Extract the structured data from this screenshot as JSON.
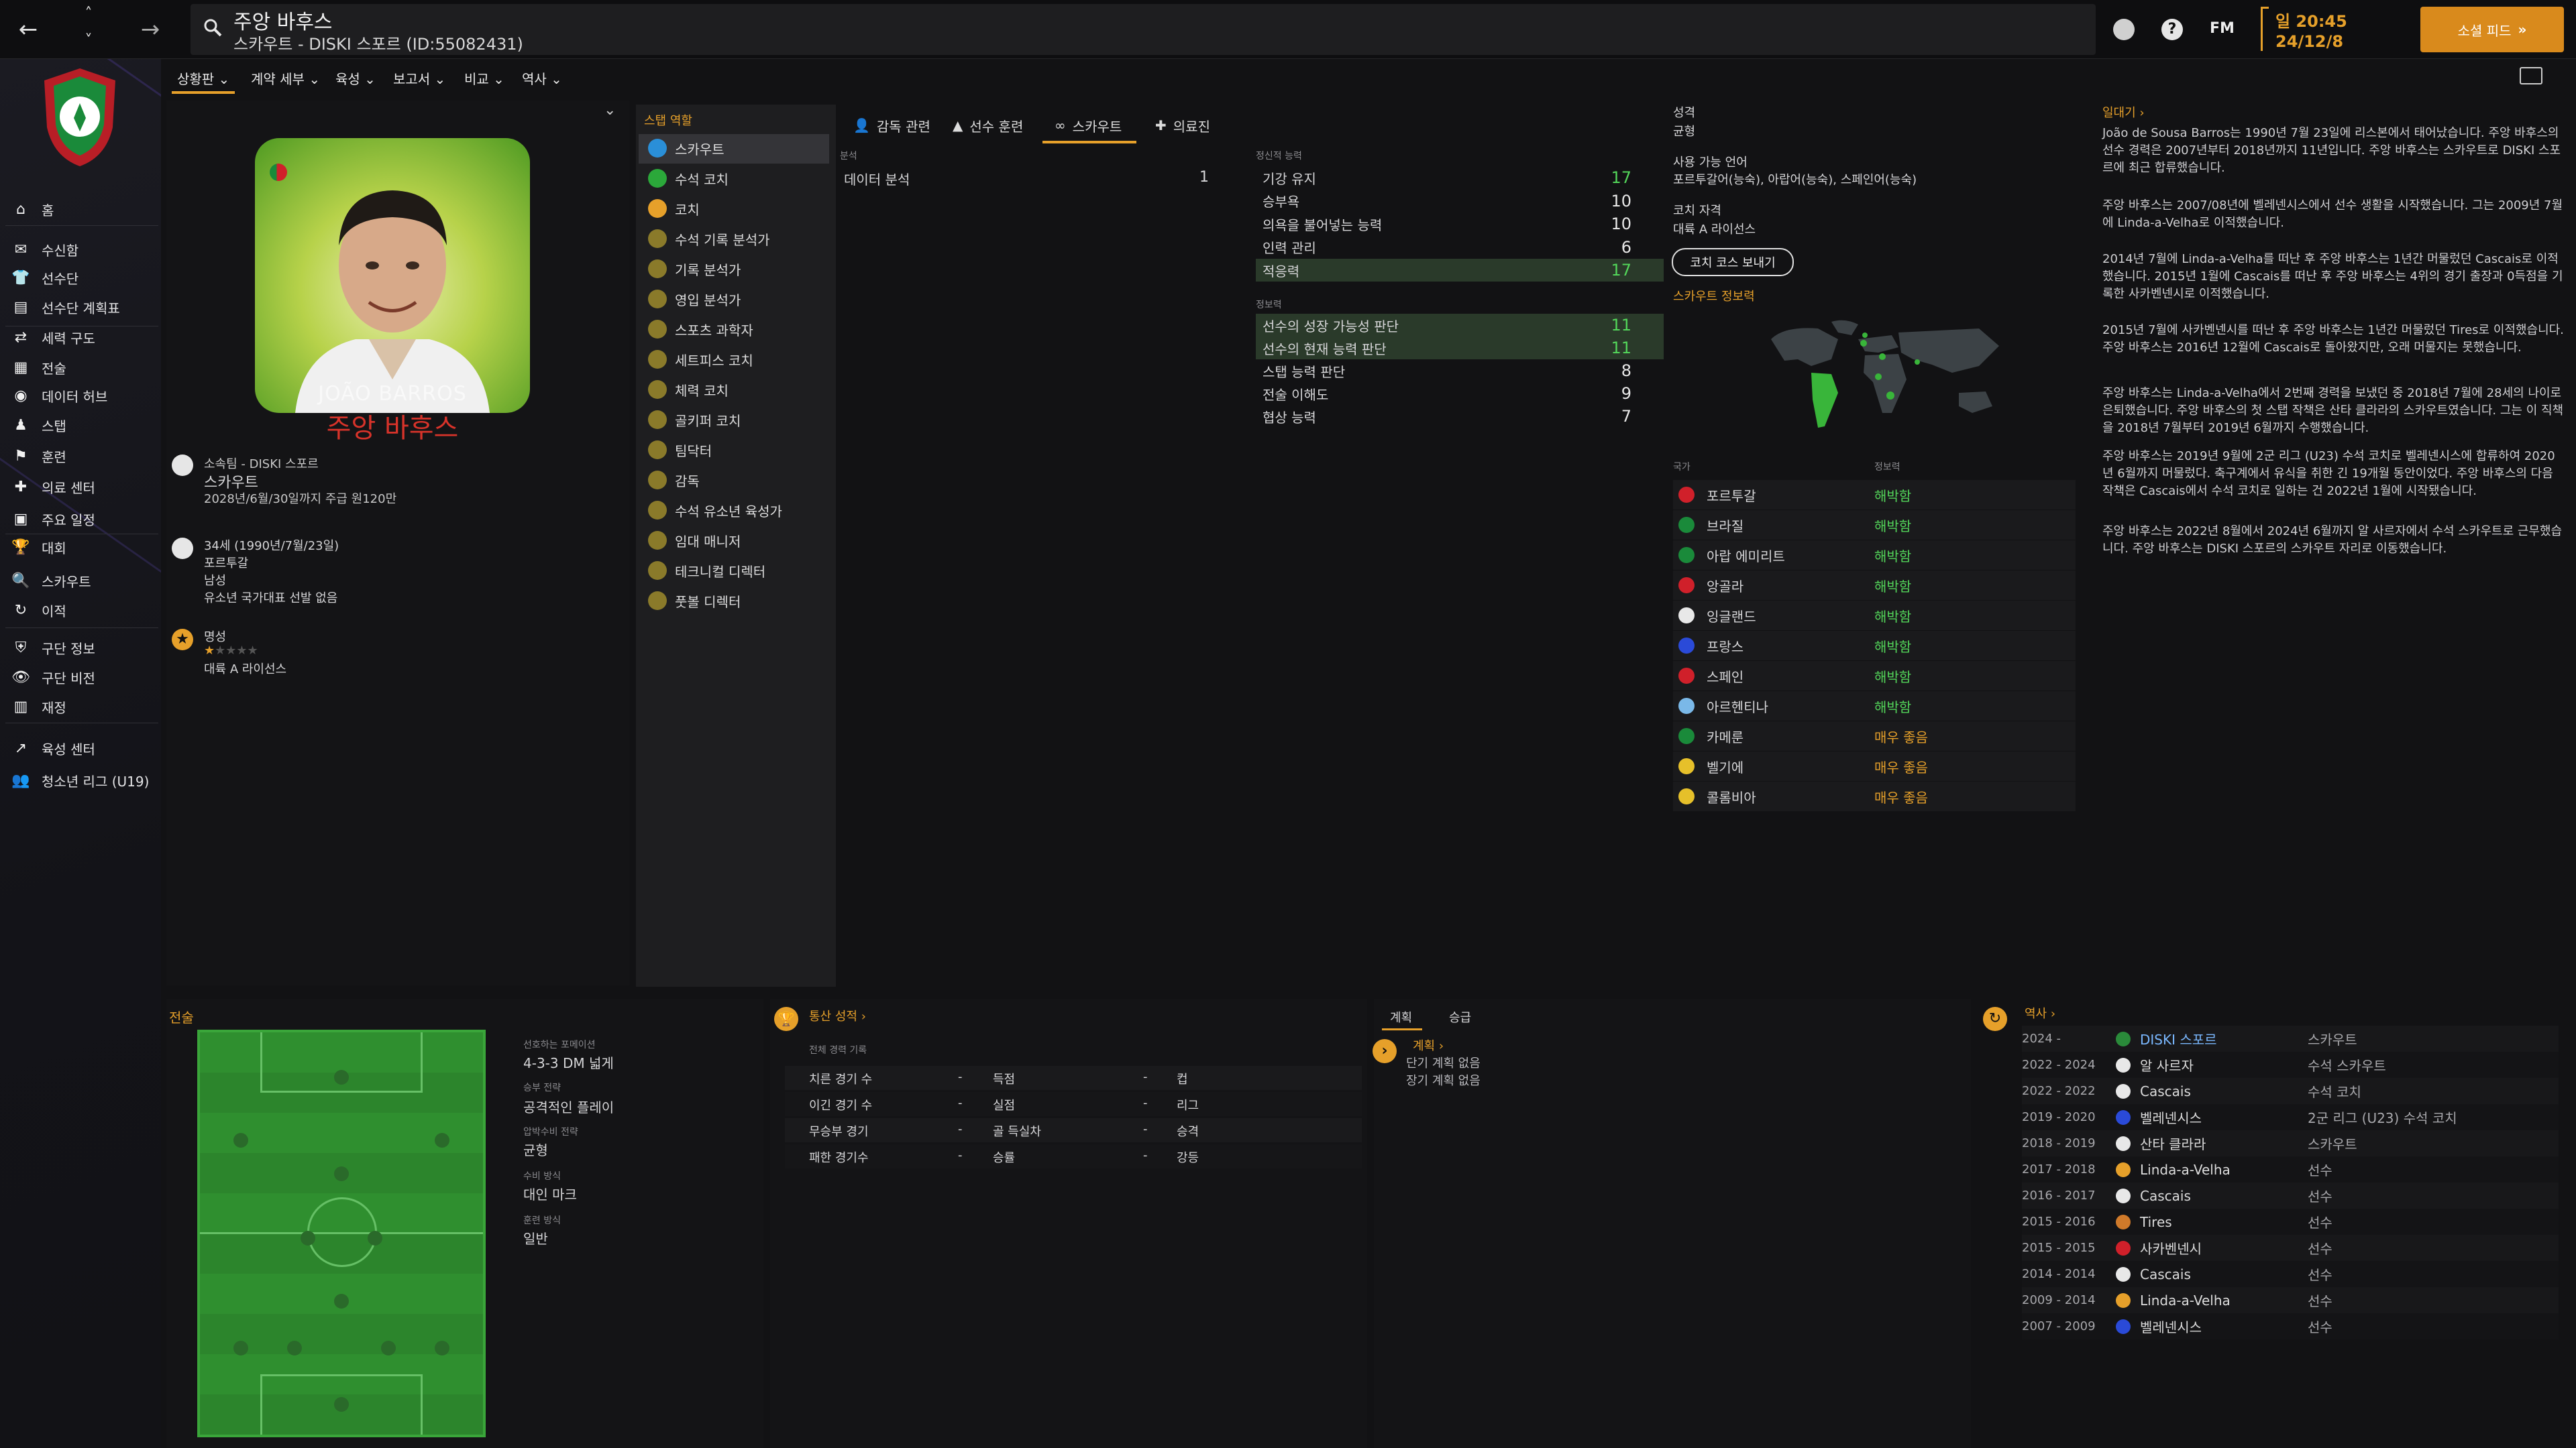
{
  "header": {
    "title": "주앙 바후스",
    "subtitle": "스카우트 - DISKI 스포르 (ID:55082431)",
    "day": "일 20:45",
    "date": "24/12/8",
    "social_feed": "소셜 피드",
    "fm": "FM"
  },
  "subnav": [
    "상황판",
    "계약 세부",
    "육성",
    "보고서",
    "비교",
    "역사"
  ],
  "sidebar": [
    "홈",
    "수신함",
    "선수단",
    "선수단 계획표",
    "세력 구도",
    "전술",
    "데이터 허브",
    "스탭",
    "훈련",
    "의료 센터",
    "주요 일정",
    "대회",
    "스카우트",
    "이적",
    "구단 정보",
    "구단 비전",
    "재정",
    "육성 센터",
    "청소년 리그 (U19)"
  ],
  "profile": {
    "card_name": "JOÃO BARROS",
    "name": "주앙 바후스",
    "club_label": "소속팀 - DISKI 스포르",
    "role": "스카우트",
    "contract": "2028년/6월/30일까지 주급 원120만",
    "age": "34세 (1990년/7월/23일)",
    "nation": "포르투갈",
    "gender": "남성",
    "intl": "유소년 국가대표 선발 없음",
    "rep_label": "명성",
    "license": "대륙 A 라이선스"
  },
  "staff_roles": {
    "title": "스탭 역할",
    "items": [
      "스카우트",
      "수석 코치",
      "코치",
      "수석 기록 분석가",
      "기록 분석가",
      "영입 분석가",
      "스포츠 과학자",
      "세트피스 코치",
      "체력 코치",
      "골키퍼 코치",
      "팀닥터",
      "감독",
      "수석 유소년 육성가",
      "임대 매니저",
      "테크니컬 디렉터",
      "풋볼 디렉터"
    ]
  },
  "tabs": [
    "감독 관련",
    "선수 훈련",
    "스카우트",
    "의료진"
  ],
  "analysis": {
    "section": "분석",
    "label": "데이터 분석",
    "value": "1"
  },
  "mental": {
    "section": "정신적 능력",
    "rows": [
      {
        "n": "기강 유지",
        "v": "17"
      },
      {
        "n": "승부욕",
        "v": "10"
      },
      {
        "n": "의욕을 불어넣는 능력",
        "v": "10"
      },
      {
        "n": "인력 관리",
        "v": "6"
      },
      {
        "n": "적응력",
        "v": "17"
      }
    ]
  },
  "knowledge": {
    "section": "정보력",
    "rows": [
      {
        "n": "선수의 성장 가능성 판단",
        "v": "11"
      },
      {
        "n": "선수의 현재 능력 판단",
        "v": "11"
      },
      {
        "n": "스탭 능력 판단",
        "v": "8"
      },
      {
        "n": "전술 이해도",
        "v": "9"
      },
      {
        "n": "협상 능력",
        "v": "7"
      }
    ]
  },
  "personal": {
    "personality_label": "성격",
    "personality": "균형",
    "lang_label": "사용 가능 언어",
    "langs": "포르투갈어(능숙), 아랍어(능숙), 스페인어(능숙)",
    "coach_label": "코치 자격",
    "coach": "대륙 A 라이선스",
    "course_btn": "코치 코스 보내기",
    "scout_label": "스카우트 정보력",
    "col_nation": "국가",
    "col_level": "정보력"
  },
  "nations": [
    {
      "n": "포르투갈",
      "l": "해박함"
    },
    {
      "n": "브라질",
      "l": "해박함"
    },
    {
      "n": "아랍 에미리트",
      "l": "해박함"
    },
    {
      "n": "앙골라",
      "l": "해박함"
    },
    {
      "n": "잉글랜드",
      "l": "해박함"
    },
    {
      "n": "프랑스",
      "l": "해박함"
    },
    {
      "n": "스페인",
      "l": "해박함"
    },
    {
      "n": "아르헨티나",
      "l": "해박함"
    },
    {
      "n": "카메룬",
      "l": "매우 좋음"
    },
    {
      "n": "벨기에",
      "l": "매우 좋음"
    },
    {
      "n": "콜롬비아",
      "l": "매우 좋음"
    }
  ],
  "bio": {
    "title": "일대기",
    "paras": [
      "João de Sousa Barros는 1990년 7월 23일에 리스본에서 태어났습니다. 주앙 바후스의 선수 경력은 2007년부터 2018년까지 11년입니다. 주앙 바후스는 스카우트로 DISKI 스포르에 최근 합류했습니다.",
      "주앙 바후스는 2007/08년에 벨레넨시스에서 선수 생활을 시작했습니다. 그는 2009년 7월에 Linda-a-Velha로 이적했습니다.",
      "2014년 7월에 Linda-a-Velha를 떠난 후 주앙 바후스는 1년간 머물렀던 Cascais로 이적했습니다. 2015년 1월에 Cascais를 떠난 후 주앙 바후스는 4위의 경기 출장과 0득점을 기록한 사카벤넨시로 이적했습니다.",
      "2015년 7월에 사카벤넨시를 떠난 후 주앙 바후스는 1년간 머물렀던 Tires로 이적했습니다. 주앙 바후스는 2016년 12월에 Cascais로 돌아왔지만, 오래 머물지는 못했습니다.",
      "주앙 바후스는 Linda-a-Velha에서 2번째 경력을 보냈던 중 2018년 7월에 28세의 나이로 은퇴했습니다. 주앙 바후스의 첫 스탭 작책은 산타 클라라의 스카우트였습니다. 그는 이 직책을 2018년 7월부터 2019년 6월까지 수행했습니다.",
      "주앙 바후스는 2019년 9월에 2군 리그 (U23) 수석 코치로 벨레넨시스에 합류하여 2020년 6월까지 머물렀다. 축구계에서 유식을 취한 긴 19개월 동안이었다. 주앙 바후스의 다음 작책은 Cascais에서 수석 코치로 일하는 건 2022년 1월에 시작됐습니다.",
      "주앙 바후스는 2022년 8월에서 2024년 6월까지 알 사르자에서 수석 스카우트로 근무했습니다. 주앙 바후스는 DISKI 스포르의 스카우트 자리로 이동했습니다."
    ]
  },
  "tactics": {
    "title": "전술",
    "formation_label": "선호하는 포메이션",
    "formation": "4-3-3 DM 넓게",
    "win_label": "승부 전략",
    "win": "공격적인 플레이",
    "tactic_label": "압박수비 전략",
    "tactic": "균형",
    "marking_label": "수비 방식",
    "marking": "대인 마크",
    "training_label": "훈련 방식",
    "training": "일반"
  },
  "record": {
    "title": "통산 성적",
    "sub": "전체 경력 기록",
    "rows": [
      [
        "치른 경기 수",
        "-",
        "득점",
        "-",
        "컵"
      ],
      [
        "이긴 경기 수",
        "-",
        "실점",
        "-",
        "리그"
      ],
      [
        "무승부 경기",
        "-",
        "골 득실차",
        "-",
        "승격"
      ],
      [
        "패한 경기수",
        "-",
        "승률",
        "-",
        "강등"
      ]
    ]
  },
  "plans": {
    "tab1": "계획",
    "tab2": "승급",
    "label": "계획",
    "short": "단기 계획 없음",
    "long": "장기 계획 없음"
  },
  "history": {
    "title": "역사",
    "rows": [
      {
        "y": "2024 -",
        "c": "DISKI 스포르",
        "r": "스카우트"
      },
      {
        "y": "2022 - 2024",
        "c": "알 사르자",
        "r": "수석 스카우트"
      },
      {
        "y": "2022 - 2022",
        "c": "Cascais",
        "r": "수석 코치"
      },
      {
        "y": "2019 - 2020",
        "c": "벨레넨시스",
        "r": "2군 리그 (U23) 수석 코치"
      },
      {
        "y": "2018 - 2019",
        "c": "산타 클라라",
        "r": "스카우트"
      },
      {
        "y": "2017 - 2018",
        "c": "Linda-a-Velha",
        "r": "선수"
      },
      {
        "y": "2016 - 2017",
        "c": "Cascais",
        "r": "선수"
      },
      {
        "y": "2015 - 2016",
        "c": "Tires",
        "r": "선수"
      },
      {
        "y": "2015 - 2015",
        "c": "사카벤넨시",
        "r": "선수"
      },
      {
        "y": "2014 - 2014",
        "c": "Cascais",
        "r": "선수"
      },
      {
        "y": "2009 - 2014",
        "c": "Linda-a-Velha",
        "r": "선수"
      },
      {
        "y": "2007 - 2009",
        "c": "벨레넨시스",
        "r": "선수"
      }
    ]
  },
  "colors": {
    "accent": "#e6a02a",
    "green": "#53d65a",
    "bg": "#121214"
  }
}
